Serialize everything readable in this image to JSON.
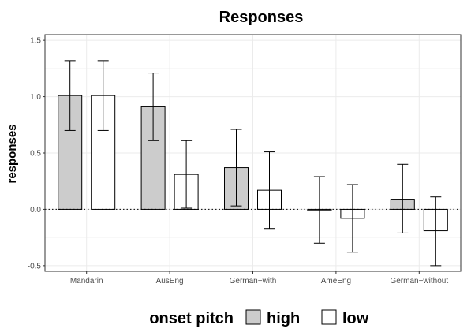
{
  "chart_data": {
    "type": "bar",
    "title": "Responses",
    "xlabel": "",
    "ylabel": "responses",
    "ylim": [
      -0.55,
      1.55
    ],
    "yticks": [
      -0.5,
      0.0,
      0.5,
      1.0,
      1.5
    ],
    "ytick_labels": [
      "-0.5",
      "0.0",
      "0.5",
      "1.0",
      "1.5"
    ],
    "categories": [
      "Mandarin",
      "AusEng",
      "German−with",
      "AmeEng",
      "German−without"
    ],
    "series": [
      {
        "name": "high",
        "color": "#cccccc",
        "values": [
          1.01,
          0.91,
          0.37,
          -0.01,
          0.09
        ],
        "err_low": [
          0.7,
          0.61,
          0.03,
          -0.3,
          -0.21
        ],
        "err_high": [
          1.32,
          1.21,
          0.71,
          0.29,
          0.4
        ]
      },
      {
        "name": "low",
        "color": "#ffffff",
        "values": [
          1.01,
          0.31,
          0.17,
          -0.08,
          -0.19
        ],
        "err_low": [
          0.7,
          0.01,
          -0.17,
          -0.38,
          -0.5
        ],
        "err_high": [
          1.32,
          0.61,
          0.51,
          0.22,
          0.11
        ]
      }
    ],
    "reference_line": {
      "y": 0,
      "style": "dotted"
    },
    "grid": true,
    "legend": {
      "title": "onset pitch",
      "position": "bottom"
    }
  }
}
